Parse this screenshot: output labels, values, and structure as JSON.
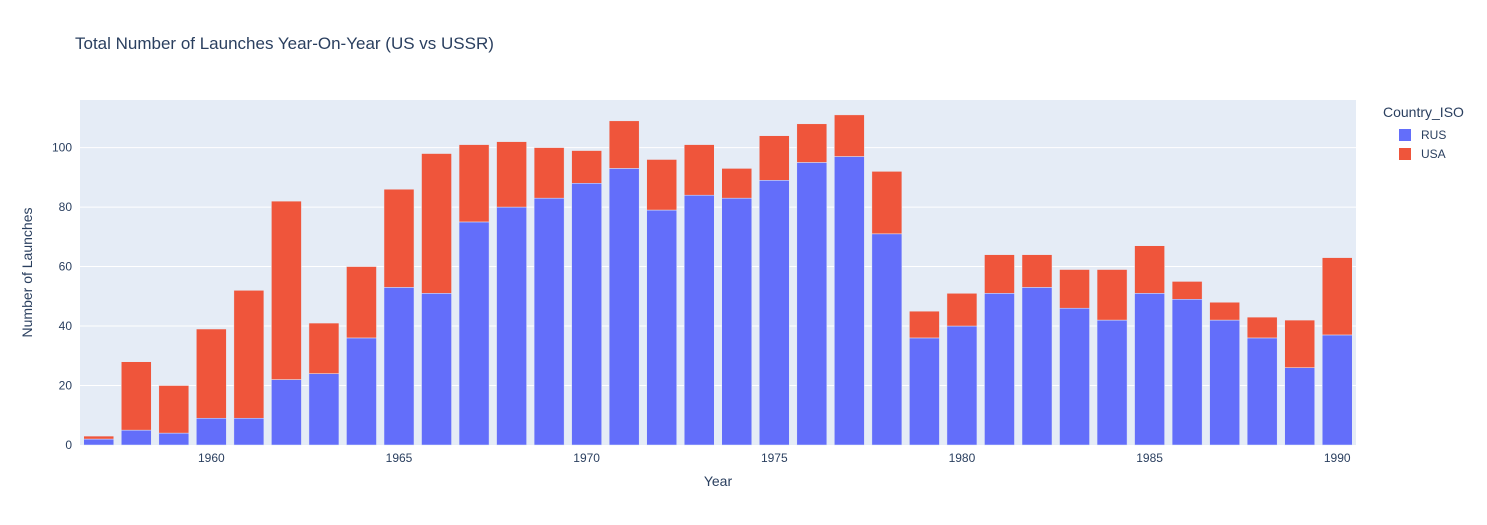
{
  "chart_data": {
    "type": "bar",
    "barmode": "stack",
    "title": "Total Number of Launches Year-On-Year (US vs USSR)",
    "xlabel": "Year",
    "ylabel": "Number of Launches",
    "x": [
      1957,
      1958,
      1959,
      1960,
      1961,
      1962,
      1963,
      1964,
      1965,
      1966,
      1967,
      1968,
      1969,
      1970,
      1971,
      1972,
      1973,
      1974,
      1975,
      1976,
      1977,
      1978,
      1979,
      1980,
      1981,
      1982,
      1983,
      1984,
      1985,
      1986,
      1987,
      1988,
      1989,
      1990
    ],
    "xlim": [
      1956.5,
      1990.5
    ],
    "ylim": [
      0,
      116
    ],
    "x_ticks": [
      1960,
      1965,
      1970,
      1975,
      1980,
      1985,
      1990
    ],
    "y_ticks": [
      0,
      20,
      40,
      60,
      80,
      100
    ],
    "grid": true,
    "legend_title": "Country_ISO",
    "legend_position": "top-right",
    "series": [
      {
        "name": "RUS",
        "color": "#636efa",
        "values": [
          2,
          5,
          4,
          9,
          9,
          22,
          24,
          36,
          53,
          51,
          75,
          80,
          83,
          88,
          93,
          79,
          84,
          83,
          89,
          95,
          97,
          71,
          36,
          40,
          51,
          53,
          46,
          42,
          51,
          49,
          42,
          36,
          26,
          37
        ]
      },
      {
        "name": "USA",
        "color": "#ef553b",
        "values": [
          1,
          23,
          16,
          30,
          43,
          60,
          17,
          24,
          33,
          47,
          26,
          22,
          17,
          11,
          16,
          17,
          17,
          10,
          15,
          13,
          14,
          21,
          9,
          11,
          13,
          11,
          13,
          17,
          16,
          6,
          6,
          7,
          16,
          26
        ]
      }
    ]
  }
}
